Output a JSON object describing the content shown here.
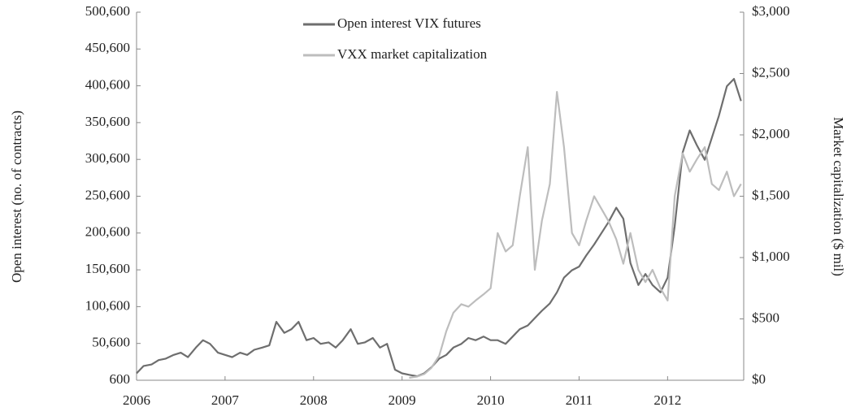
{
  "chart_data": {
    "type": "line",
    "y_label": "Open interest (no. of contracts)",
    "y2_label": "Market capitalization ($ mil)",
    "x": [
      2006.0,
      2006.08,
      2006.17,
      2006.25,
      2006.33,
      2006.42,
      2006.5,
      2006.58,
      2006.67,
      2006.75,
      2006.83,
      2006.92,
      2007.0,
      2007.08,
      2007.17,
      2007.25,
      2007.33,
      2007.42,
      2007.5,
      2007.58,
      2007.67,
      2007.75,
      2007.83,
      2007.92,
      2008.0,
      2008.08,
      2008.17,
      2008.25,
      2008.33,
      2008.42,
      2008.5,
      2008.58,
      2008.67,
      2008.75,
      2008.83,
      2008.92,
      2009.0,
      2009.08,
      2009.17,
      2009.25,
      2009.33,
      2009.42,
      2009.5,
      2009.58,
      2009.67,
      2009.75,
      2009.83,
      2009.92,
      2010.0,
      2010.08,
      2010.17,
      2010.25,
      2010.33,
      2010.42,
      2010.5,
      2010.58,
      2010.67,
      2010.75,
      2010.83,
      2010.92,
      2011.0,
      2011.08,
      2011.17,
      2011.25,
      2011.33,
      2011.42,
      2011.5,
      2011.58,
      2011.67,
      2011.75,
      2011.83,
      2011.92,
      2012.0,
      2012.08,
      2012.17,
      2012.25,
      2012.33,
      2012.42,
      2012.5,
      2012.58,
      2012.67,
      2012.75,
      2012.83
    ],
    "series": [
      {
        "name": "Open interest VIX futures",
        "color": "#6e6e6e",
        "axis": "y",
        "values": [
          10000,
          20000,
          22000,
          28000,
          30000,
          35000,
          38000,
          32000,
          45000,
          55000,
          50000,
          38000,
          35000,
          32000,
          38000,
          35000,
          42000,
          45000,
          48000,
          80000,
          65000,
          70000,
          80000,
          55000,
          58000,
          50000,
          52000,
          45000,
          55000,
          70000,
          50000,
          52000,
          58000,
          45000,
          50000,
          15000,
          10000,
          8000,
          6000,
          10000,
          18000,
          30000,
          35000,
          45000,
          50000,
          58000,
          55000,
          60000,
          55000,
          55000,
          50000,
          60000,
          70000,
          75000,
          85000,
          95000,
          105000,
          120000,
          140000,
          150000,
          155000,
          170000,
          185000,
          200000,
          215000,
          235000,
          220000,
          160000,
          130000,
          145000,
          130000,
          120000,
          140000,
          210000,
          310000,
          340000,
          320000,
          300000,
          330000,
          360000,
          400000,
          410000,
          380000
        ]
      },
      {
        "name": "VXX market capitalization",
        "color": "#bdbdbd",
        "axis": "y2",
        "values": [
          null,
          null,
          null,
          null,
          null,
          null,
          null,
          null,
          null,
          null,
          null,
          null,
          null,
          null,
          null,
          null,
          null,
          null,
          null,
          null,
          null,
          null,
          null,
          null,
          null,
          null,
          null,
          null,
          null,
          null,
          null,
          null,
          null,
          null,
          null,
          null,
          null,
          20,
          30,
          50,
          100,
          200,
          400,
          550,
          620,
          600,
          650,
          700,
          750,
          1200,
          1050,
          1100,
          1500,
          1900,
          900,
          1300,
          1600,
          2350,
          1900,
          1200,
          1100,
          1300,
          1500,
          1400,
          1300,
          1150,
          950,
          1200,
          900,
          800,
          900,
          750,
          650,
          1500,
          1850,
          1700,
          1800,
          1900,
          1600,
          1550,
          1700,
          1500,
          1600
        ]
      }
    ],
    "xlim": [
      2006,
      2012.86
    ],
    "xticks": [
      2006,
      2007,
      2008,
      2009,
      2010,
      2011,
      2012
    ],
    "ylim": [
      600,
      500600
    ],
    "yticks": [
      600,
      {
        "value": 50600,
        "label": "50,600"
      },
      {
        "value": 100600,
        "label": "100,600"
      },
      {
        "value": 150600,
        "label": "150,600"
      },
      {
        "value": 200600,
        "label": "200,600"
      },
      {
        "value": 250600,
        "label": "250,600"
      },
      {
        "value": 300600,
        "label": "300,600"
      },
      {
        "value": 350600,
        "label": "350,600"
      },
      {
        "value": 400600,
        "label": "400,600"
      },
      {
        "value": 450600,
        "label": "450,600"
      },
      {
        "value": 500600,
        "label": "500,600"
      }
    ],
    "y2lim": [
      0,
      3000
    ],
    "y2ticks": [
      {
        "value": 0,
        "label": "$0"
      },
      {
        "value": 500,
        "label": "$500"
      },
      {
        "value": 1000,
        "label": "$1,000"
      },
      {
        "value": 1500,
        "label": "$1,500"
      },
      {
        "value": 2000,
        "label": "$2,000"
      },
      {
        "value": 2500,
        "label": "$2,500"
      },
      {
        "value": 3000,
        "label": "$3,000"
      }
    ],
    "legend": "top"
  }
}
